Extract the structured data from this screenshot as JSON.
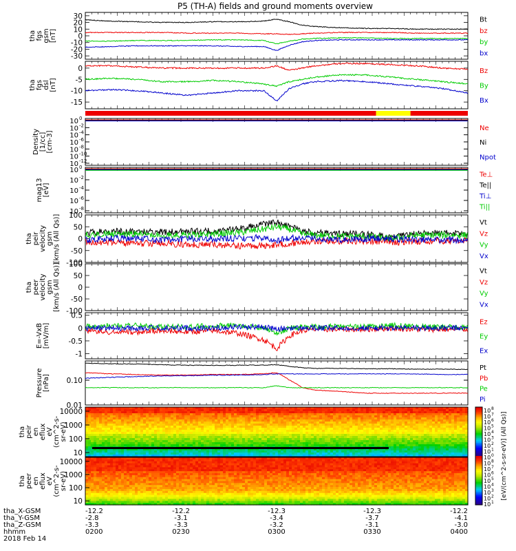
{
  "title": "P5 (TH-A) fields and ground moments overview",
  "colors": {
    "black": "#000000",
    "red": "#ee0000",
    "green": "#00cc00",
    "blue": "#0000cc",
    "yellow": "#ffff00"
  },
  "chart_data": [
    {
      "type": "line",
      "panel": "tha fgs gsm",
      "ylabel": [
        "tha",
        "fgs",
        "gsm",
        "[nT]"
      ],
      "ylim": [
        -35,
        35
      ],
      "ticks": [
        30,
        20,
        10,
        0,
        -10,
        -20,
        -30
      ],
      "legend": [
        "Bt",
        "bz",
        "by",
        "bx"
      ],
      "x": [
        0,
        4,
        8,
        12,
        16,
        20,
        24,
        28,
        30,
        32,
        34,
        36,
        40,
        44,
        48,
        52,
        56,
        60
      ],
      "series": [
        {
          "name": "Bt",
          "color": "black",
          "values": [
            24,
            22,
            21,
            20,
            20,
            21,
            21,
            22,
            25,
            21,
            16,
            14,
            12,
            11,
            11,
            10,
            10,
            10
          ]
        },
        {
          "name": "bz",
          "color": "red",
          "values": [
            5,
            5,
            5,
            5,
            4,
            4,
            4,
            3,
            3,
            2,
            3,
            4,
            5,
            5,
            5,
            4,
            4,
            4
          ]
        },
        {
          "name": "by",
          "color": "green",
          "values": [
            -8,
            -8,
            -7,
            -7,
            -7,
            -6,
            -6,
            -7,
            -12,
            -8,
            -5,
            -4,
            -3,
            -3,
            -4,
            -4,
            -4,
            -4
          ]
        },
        {
          "name": "bx",
          "color": "blue",
          "values": [
            -17,
            -16,
            -15,
            -15,
            -15,
            -15,
            -16,
            -16,
            -22,
            -14,
            -9,
            -7,
            -6,
            -6,
            -6,
            -6,
            -6,
            -6
          ]
        }
      ]
    },
    {
      "type": "line",
      "panel": "tha fgs dsl",
      "ylabel": [
        "tha",
        "fgs",
        "dsl",
        "[nT]"
      ],
      "ylim": [
        -18,
        3
      ],
      "ticks": [
        0,
        -5,
        -10,
        -15
      ],
      "legend": [
        "Bz",
        "By",
        "Bx"
      ],
      "x": [
        0,
        4,
        8,
        12,
        16,
        20,
        24,
        28,
        30,
        32,
        34,
        36,
        40,
        44,
        48,
        52,
        56,
        60
      ],
      "series": [
        {
          "name": "Bz",
          "color": "red",
          "values": [
            1,
            1,
            0.5,
            0,
            0,
            0,
            0,
            0,
            1,
            -1,
            0,
            1,
            2,
            2,
            1.5,
            1,
            0,
            -0.5
          ]
        },
        {
          "name": "By",
          "color": "green",
          "values": [
            -5,
            -4.5,
            -5,
            -6,
            -6,
            -5.5,
            -6,
            -7,
            -8,
            -6,
            -5,
            -4,
            -3,
            -3,
            -4,
            -5,
            -6,
            -7
          ]
        },
        {
          "name": "Bx",
          "color": "blue",
          "values": [
            -10,
            -9.5,
            -10,
            -11,
            -12,
            -11,
            -10,
            -10,
            -14.5,
            -9,
            -7,
            -6,
            -5.5,
            -6,
            -7,
            -8,
            -9,
            -11
          ]
        }
      ]
    },
    {
      "type": "line",
      "panel": "Density",
      "ylabel": [
        "Density",
        "[1/cc]",
        "[cm-3]"
      ],
      "ylim": [
        "1e-12",
        "1e0"
      ],
      "ticks": [
        "10^0",
        "10^-2",
        "10^-4",
        "10^-6",
        "10^-8",
        "10^-10",
        "10^-12"
      ],
      "legend": [
        "Ne",
        "Ni",
        "Npot"
      ],
      "series": [
        {
          "name": "Ne",
          "color": "red",
          "values": [
            "~1e0"
          ]
        },
        {
          "name": "Ni",
          "color": "black",
          "values": [
            "~1e0"
          ]
        },
        {
          "name": "Npot",
          "color": "blue",
          "values": [
            "~1e0"
          ]
        }
      ]
    },
    {
      "type": "line",
      "panel": "Temperature",
      "ylabel": [
        "mag13",
        "[eV]"
      ],
      "ylim": [
        "1e-8",
        "1e0"
      ],
      "ticks": [
        "10^0",
        "10^-2",
        "10^-4",
        "10^-6",
        "10^-8"
      ],
      "legend": [
        "Te⊥",
        "Te||",
        "Ti⊥",
        "Ti||"
      ],
      "series": [
        {
          "name": "Te⊥",
          "color": "red",
          "values": [
            "~1e0"
          ]
        },
        {
          "name": "Te||",
          "color": "black",
          "values": [
            "~1e0"
          ]
        },
        {
          "name": "Ti⊥",
          "color": "blue",
          "values": [
            "~1e0"
          ]
        },
        {
          "name": "Ti||",
          "color": "green",
          "values": [
            "~1e0"
          ]
        }
      ]
    },
    {
      "type": "line",
      "panel": "peir velocity",
      "ylabel": [
        "tha",
        "peir",
        "velocity",
        "gsm",
        "[km/s (All Qs)]"
      ],
      "ylim": [
        -100,
        100
      ],
      "ticks": [
        100,
        50,
        0,
        -50,
        -100
      ],
      "legend": [
        "Vt",
        "Vz",
        "Vy",
        "Vx"
      ],
      "x": [
        0,
        4,
        8,
        12,
        16,
        20,
        24,
        28,
        30,
        32,
        34,
        36,
        40,
        44,
        48,
        52,
        56,
        60
      ],
      "series": [
        {
          "name": "Vt",
          "color": "black",
          "values": [
            25,
            30,
            30,
            28,
            30,
            32,
            40,
            60,
            70,
            55,
            30,
            25,
            20,
            18,
            5,
            20,
            25,
            20
          ]
        },
        {
          "name": "Vz",
          "color": "red",
          "values": [
            -15,
            -15,
            -20,
            -20,
            -25,
            -25,
            -30,
            -30,
            -25,
            -20,
            -15,
            -10,
            -10,
            -10,
            -15,
            -10,
            -10,
            -5
          ]
        },
        {
          "name": "Vy",
          "color": "green",
          "values": [
            15,
            20,
            20,
            15,
            15,
            20,
            25,
            40,
            50,
            40,
            20,
            15,
            10,
            10,
            0,
            15,
            15,
            15
          ]
        },
        {
          "name": "Vx",
          "color": "blue",
          "values": [
            -5,
            0,
            0,
            -5,
            0,
            0,
            0,
            5,
            -10,
            5,
            0,
            0,
            -5,
            0,
            0,
            -5,
            -5,
            -5
          ]
        }
      ]
    },
    {
      "type": "line",
      "panel": "peer velocity",
      "ylabel": [
        "tha",
        "peer",
        "velocity",
        "gsm",
        "[km/s (All Qs)]"
      ],
      "ylim": [
        -100,
        100
      ],
      "legend": [
        "Vt",
        "Vz",
        "Vy",
        "Vx"
      ],
      "series": []
    },
    {
      "type": "line",
      "panel": "E field",
      "ylabel": [
        "E=-VxB",
        "[mV/m]"
      ],
      "ylim": [
        -1.2,
        0.6
      ],
      "ticks": [
        0.5,
        0.0,
        -0.5,
        -1.0
      ],
      "legend": [
        "Ez",
        "Ey",
        "Ex"
      ],
      "x": [
        0,
        4,
        8,
        12,
        16,
        20,
        24,
        28,
        30,
        32,
        34,
        36,
        40,
        44,
        48,
        52,
        56,
        60
      ],
      "series": [
        {
          "name": "Ez",
          "color": "red",
          "values": [
            -0.1,
            -0.15,
            -0.15,
            -0.1,
            -0.15,
            -0.1,
            -0.2,
            -0.45,
            -0.8,
            -0.3,
            -0.1,
            -0.05,
            -0.05,
            -0.05,
            0,
            -0.05,
            -0.05,
            -0.05
          ]
        },
        {
          "name": "Ey",
          "color": "green",
          "values": [
            0.05,
            0.1,
            0.1,
            0.05,
            0.05,
            0.1,
            0.1,
            0.0,
            -0.2,
            0.0,
            0.05,
            0.05,
            0.05,
            0.05,
            0.1,
            0.05,
            0.05,
            0.0
          ]
        },
        {
          "name": "Ex",
          "color": "blue",
          "values": [
            0,
            0,
            0,
            0,
            0,
            0,
            0.05,
            0.05,
            -0.05,
            0,
            0,
            0,
            0,
            0,
            0,
            0,
            0,
            0
          ]
        }
      ]
    },
    {
      "type": "line",
      "panel": "Pressure",
      "ylabel": [
        "Pressure",
        "[nPa]"
      ],
      "scale": "log",
      "ylim": [
        0.01,
        0.6
      ],
      "ticks": [
        "0.10",
        "0.01"
      ],
      "legend": [
        "Pt",
        "Pb",
        "Pe",
        "Pi"
      ],
      "x": [
        0,
        4,
        8,
        12,
        16,
        20,
        24,
        28,
        30,
        32,
        34,
        36,
        40,
        44,
        48,
        52,
        56,
        60
      ],
      "series": [
        {
          "name": "Pt",
          "color": "black",
          "values": [
            0.48,
            0.46,
            0.45,
            0.42,
            0.4,
            0.4,
            0.4,
            0.41,
            0.42,
            0.36,
            0.32,
            0.3,
            0.3,
            0.29,
            0.29,
            0.28,
            0.28,
            0.27
          ]
        },
        {
          "name": "Pb",
          "color": "red",
          "values": [
            0.2,
            0.18,
            0.17,
            0.16,
            0.16,
            0.17,
            0.17,
            0.18,
            0.2,
            0.1,
            0.05,
            0.04,
            0.035,
            0.03,
            0.03,
            0.03,
            0.03,
            0.03
          ]
        },
        {
          "name": "Pe",
          "color": "green",
          "values": [
            0.05,
            0.05,
            0.05,
            0.05,
            0.05,
            0.05,
            0.05,
            0.05,
            0.06,
            0.05,
            0.05,
            0.05,
            0.05,
            0.05,
            0.05,
            0.05,
            0.05,
            0.05
          ]
        },
        {
          "name": "Pi",
          "color": "blue",
          "values": [
            0.12,
            0.13,
            0.14,
            0.15,
            0.15,
            0.16,
            0.16,
            0.17,
            0.18,
            0.18,
            0.18,
            0.18,
            0.18,
            0.18,
            0.18,
            0.18,
            0.17,
            0.17
          ]
        }
      ]
    },
    {
      "type": "heatmap",
      "panel": "peir en eflux",
      "ylabel": [
        "tha",
        "peir",
        "en",
        "eflux",
        "eV",
        "(cm^2-s-",
        "sr-eV)"
      ],
      "scale": "log",
      "ylim": [
        5,
        20000
      ],
      "ticks": [
        "10000",
        "1000",
        "100",
        "10"
      ]
    },
    {
      "type": "heatmap",
      "panel": "peer en eflux",
      "ylabel": [
        "tha",
        "peer",
        "en",
        "eflux",
        "eV",
        "(cm^2-s-",
        "sr-eV)"
      ],
      "scale": "log",
      "ylim": [
        5,
        20000
      ],
      "ticks": [
        "10000",
        "1000",
        "100",
        "10"
      ]
    }
  ],
  "colorbar": {
    "label": "[eV/(cm^2-s-sr-eV)] (All Qs)]",
    "ticks": [
      "10^8",
      "10^7",
      "10^6",
      "10^5",
      "10^4",
      "10^3",
      "10^2",
      "10^1",
      "10^0",
      "10^8",
      "10^7",
      "10^6",
      "10^5",
      "10^4",
      "10^3",
      "10^2",
      "10^1"
    ]
  },
  "xaxis": {
    "rows": [
      {
        "label": "tha_X-GSM",
        "values": [
          "-12.2",
          "-12.2",
          "-12.3",
          "-12.3",
          "-12.2"
        ]
      },
      {
        "label": "tha_Y-GSM",
        "values": [
          "-2.8",
          "-3.1",
          "-3.4",
          "-3.7",
          "-4.1"
        ]
      },
      {
        "label": "tha_Z-GSM",
        "values": [
          "-3.3",
          "-3.3",
          "-3.2",
          "-3.1",
          "-3.0"
        ]
      },
      {
        "label": "hhmm",
        "values": [
          "0200",
          "0230",
          "0300",
          "0330",
          "0400"
        ]
      }
    ],
    "date": "2018 Feb 14"
  },
  "status_bar": {
    "segments": [
      {
        "color": "red",
        "from": 0,
        "to": 0.76
      },
      {
        "color": "yellow",
        "from": 0.76,
        "to": 0.85
      },
      {
        "color": "red",
        "from": 0.85,
        "to": 1
      }
    ]
  }
}
